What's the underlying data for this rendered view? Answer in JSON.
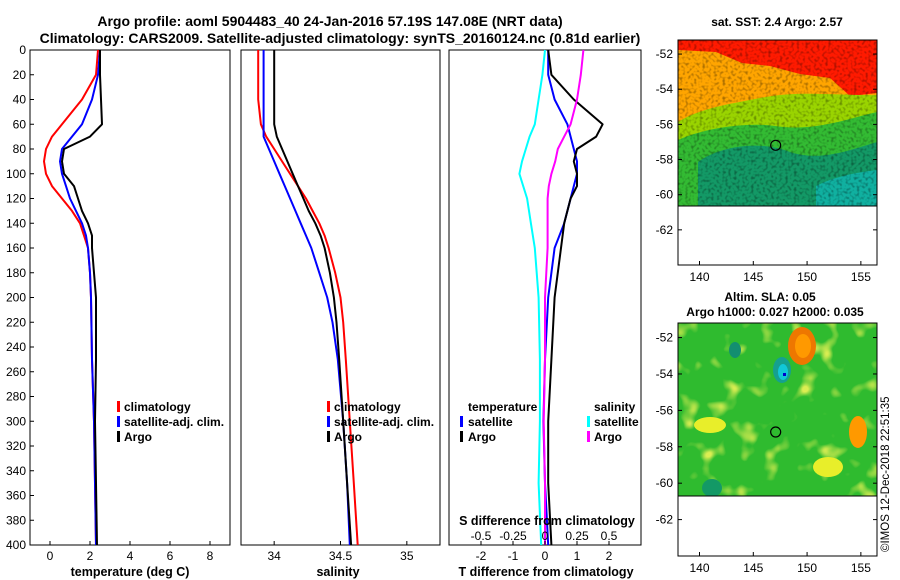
{
  "title": {
    "line1": "Argo profile: aoml 5904483_40 24-Jan-2016 57.19S 147.08E (NRT data)",
    "line2": "Climatology: CARS2009. Satellite-adjusted climatology: synTS_20160124.nc (0.81d earlier)"
  },
  "depth_axis": {
    "ticks": [
      0,
      20,
      40,
      60,
      80,
      100,
      120,
      140,
      160,
      180,
      200,
      220,
      240,
      260,
      280,
      300,
      320,
      340,
      360,
      380,
      400
    ],
    "ylim": [
      0,
      400
    ]
  },
  "colors": {
    "climatology": "#ff0000",
    "satellite": "#0000ff",
    "argo": "#000000",
    "sal_satellite": "#00ffff",
    "sal_climatology": "#ff00ff"
  },
  "chart_data": [
    {
      "type": "line",
      "xlabel": "temperature (deg C)",
      "xlim": [
        -1,
        9
      ],
      "xticks": [
        0,
        2,
        4,
        6,
        8
      ],
      "depth": [
        0,
        20,
        40,
        60,
        70,
        80,
        90,
        100,
        110,
        120,
        130,
        140,
        150,
        160,
        180,
        200,
        250,
        300,
        350,
        400
      ],
      "series": [
        {
          "name": "climatology",
          "color": "#ff0000",
          "values": [
            2.4,
            2.3,
            1.6,
            0.6,
            0.1,
            -0.2,
            -0.3,
            -0.2,
            0.1,
            0.6,
            1.1,
            1.5,
            1.7,
            1.9,
            2.0,
            2.05,
            2.1,
            2.2,
            2.25,
            2.3
          ]
        },
        {
          "name": "satellite-adj. clim.",
          "color": "#0000ff",
          "values": [
            2.5,
            2.4,
            2.1,
            1.6,
            1.1,
            0.6,
            0.5,
            0.6,
            0.8,
            1.0,
            1.3,
            1.6,
            1.8,
            1.9,
            2.0,
            2.05,
            2.1,
            2.2,
            2.25,
            2.3
          ]
        },
        {
          "name": "Argo",
          "color": "#000000",
          "values": [
            2.5,
            2.5,
            2.55,
            2.6,
            2.0,
            0.7,
            0.6,
            0.7,
            1.2,
            1.4,
            1.6,
            1.9,
            2.1,
            2.1,
            2.2,
            2.3,
            2.3,
            2.25,
            2.3,
            2.35
          ]
        }
      ],
      "legend": [
        "climatology",
        "satellite-adj. clim.",
        "Argo"
      ]
    },
    {
      "type": "line",
      "xlabel": "salinity",
      "xlim": [
        33.75,
        35.25
      ],
      "xticks": [
        34,
        34.5,
        35
      ],
      "xticklabels": [
        "34",
        "34.5",
        "35"
      ],
      "depth": [
        0,
        20,
        40,
        60,
        70,
        80,
        90,
        100,
        110,
        120,
        130,
        140,
        150,
        160,
        180,
        200,
        220,
        250,
        300,
        350,
        400
      ],
      "series": [
        {
          "name": "climatology",
          "color": "#ff0000",
          "values": [
            33.88,
            33.88,
            33.88,
            33.9,
            33.94,
            34.0,
            34.06,
            34.12,
            34.18,
            34.24,
            34.29,
            34.34,
            34.38,
            34.41,
            34.46,
            34.5,
            34.52,
            34.54,
            34.57,
            34.6,
            34.63
          ]
        },
        {
          "name": "satellite-adj. clim.",
          "color": "#0000ff",
          "values": [
            33.92,
            33.92,
            33.92,
            33.92,
            33.92,
            33.96,
            34.0,
            34.04,
            34.08,
            34.12,
            34.16,
            34.2,
            34.24,
            34.28,
            34.34,
            34.4,
            34.44,
            34.48,
            34.52,
            34.55,
            34.57
          ]
        },
        {
          "name": "Argo",
          "color": "#000000",
          "values": [
            34.0,
            34.0,
            34.0,
            34.0,
            34.02,
            34.06,
            34.1,
            34.14,
            34.18,
            34.22,
            34.26,
            34.31,
            34.35,
            34.38,
            34.42,
            34.45,
            34.47,
            34.49,
            34.52,
            34.55,
            34.58
          ]
        }
      ],
      "legend": [
        "climatology",
        "satellite-adj. clim.",
        "Argo"
      ]
    },
    {
      "type": "line",
      "xlabel": "T difference from climatology",
      "xlim": [
        -3,
        3
      ],
      "xticks": [
        -2,
        -1,
        0,
        1,
        2
      ],
      "xlabel_top": "S difference from climatology",
      "sxlim": [
        -0.75,
        0.75
      ],
      "sxticks": [
        -0.5,
        -0.25,
        0,
        0.25,
        0.5
      ],
      "sxticklabels": [
        "-0.5",
        "-0.25",
        "0",
        "0.25",
        "0.5"
      ],
      "depth": [
        0,
        20,
        40,
        60,
        70,
        80,
        90,
        100,
        110,
        120,
        140,
        160,
        200,
        250,
        300,
        350,
        400
      ],
      "series": [
        {
          "name": "T satellite",
          "group": "temperature",
          "color": "#0000ff",
          "values": [
            0.1,
            0.1,
            0.3,
            0.7,
            0.8,
            0.9,
            1.0,
            1.0,
            0.9,
            0.8,
            0.6,
            0.3,
            0.1,
            0.0,
            -0.05,
            0.0,
            0.1
          ]
        },
        {
          "name": "T Argo",
          "group": "temperature",
          "color": "#000000",
          "values": [
            0.1,
            0.2,
            0.9,
            1.8,
            1.6,
            1.0,
            0.9,
            1.0,
            1.0,
            0.8,
            0.6,
            0.5,
            0.3,
            0.2,
            0.1,
            0.1,
            0.2
          ]
        },
        {
          "name": "S satellite",
          "group": "salinity",
          "color": "#00ffff",
          "values": [
            0.0,
            -0.02,
            -0.05,
            -0.08,
            -0.12,
            -0.15,
            -0.18,
            -0.2,
            -0.17,
            -0.14,
            -0.11,
            -0.08,
            -0.05,
            -0.04,
            -0.04,
            -0.05,
            -0.03
          ]
        },
        {
          "name": "S Argo",
          "group": "salinity",
          "color": "#ff00ff",
          "values": [
            0.3,
            0.28,
            0.25,
            0.2,
            0.15,
            0.1,
            0.08,
            0.05,
            0.03,
            0.02,
            0.02,
            0.02,
            0.0,
            0.0,
            -0.01,
            0.0,
            0.0
          ]
        }
      ],
      "legend": {
        "temperature": {
          "title": "temperature",
          "items": [
            "satellite",
            "Argo"
          ]
        },
        "salinity": {
          "title": "salinity",
          "items": [
            "satellite",
            "Argo"
          ]
        }
      }
    },
    {
      "type": "heatmap",
      "title": "sat. SST: 2.4 Argo: 2.57",
      "xlim": [
        138,
        156.5
      ],
      "ylim": [
        -64,
        -51.2
      ],
      "xticks": [
        140,
        145,
        150,
        155
      ],
      "yticks": [
        -52,
        -54,
        -56,
        -58,
        -60,
        -62
      ],
      "data_extent_lat": [
        -60,
        -51.2
      ],
      "marker": {
        "lon": 147.08,
        "lat": -57.19
      }
    },
    {
      "type": "heatmap",
      "title": "Altim. SLA: 0.05",
      "subtitle": "Argo h1000: 0.027 h2000: 0.035",
      "xlim": [
        138,
        156.5
      ],
      "ylim": [
        -64,
        -51.2
      ],
      "xticks": [
        140,
        145,
        150,
        155
      ],
      "yticks": [
        -52,
        -54,
        -56,
        -58,
        -60,
        -62
      ],
      "data_extent_lat": [
        -60,
        -51.2
      ],
      "marker": {
        "lon": 147.08,
        "lat": -57.19
      }
    }
  ],
  "watermark": "©IMOS 12-Dec-2018 22:51:35"
}
